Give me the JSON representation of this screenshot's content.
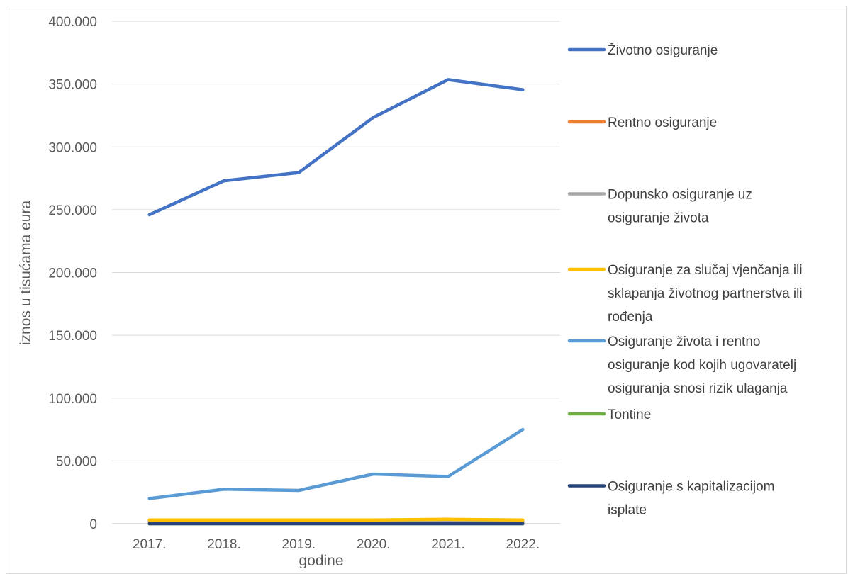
{
  "chart_data": {
    "type": "line",
    "xlabel": "godine",
    "ylabel": "iznos u tisućama eura",
    "categories": [
      "2017.",
      "2018.",
      "2019.",
      "2020.",
      "2021.",
      "2022."
    ],
    "ylim": [
      0,
      400000
    ],
    "yticks": [
      0,
      50000,
      100000,
      150000,
      200000,
      250000,
      300000,
      350000,
      400000
    ],
    "ytick_labels": [
      "0",
      "50.000",
      "100.000",
      "150.000",
      "200.000",
      "250.000",
      "300.000",
      "350.000",
      "400.000"
    ],
    "grid": true,
    "legend_position": "right",
    "series": [
      {
        "name": "Životno osiguranje",
        "color": "#4472C4",
        "values": [
          246000,
          273000,
          279500,
          323500,
          353500,
          345500
        ],
        "legend_lines": [
          "Životno osiguranje"
        ]
      },
      {
        "name": "Rentno osiguranje",
        "color": "#ED7D31",
        "values": [
          1500,
          1500,
          1500,
          1500,
          1500,
          1500
        ],
        "legend_lines": [
          "Rentno osiguranje"
        ]
      },
      {
        "name": "Dopunsko osiguranje uz osiguranje života",
        "color": "#A5A5A5",
        "values": [
          2500,
          2500,
          2500,
          2500,
          2500,
          2500
        ],
        "legend_lines": [
          "Dopunsko osiguranje uz",
          "osiguranje života"
        ]
      },
      {
        "name": "Osiguranje za slučaj vjenčanja ili sklapanja životnog partnerstva ili rođenja",
        "color": "#FFC000",
        "values": [
          3000,
          3000,
          3000,
          3000,
          3500,
          3000
        ],
        "legend_lines": [
          "Osiguranje za slučaj vjenčanja ili",
          "sklapanja životnog partnerstva ili",
          "rođenja"
        ]
      },
      {
        "name": "Osiguranje života i rentno osiguranje kod kojih ugovaratelj osiguranja snosi rizik ulaganja",
        "color": "#5B9BD5",
        "values": [
          20000,
          27500,
          26500,
          39500,
          37500,
          75000
        ],
        "legend_lines": [
          "Osiguranje života i rentno",
          "osiguranje kod kojih ugovaratelj",
          "osiguranja snosi rizik ulaganja"
        ]
      },
      {
        "name": "Tontine",
        "color": "#70AD47",
        "values": [
          0,
          0,
          0,
          0,
          0,
          0
        ],
        "legend_lines": [
          "Tontine"
        ]
      },
      {
        "name": "Osiguranje s kapitalizacijom isplate",
        "color": "#264478",
        "values": [
          0,
          0,
          0,
          0,
          0,
          0
        ],
        "legend_lines": [
          "Osiguranje s kapitalizacijom",
          "isplate"
        ]
      }
    ]
  }
}
